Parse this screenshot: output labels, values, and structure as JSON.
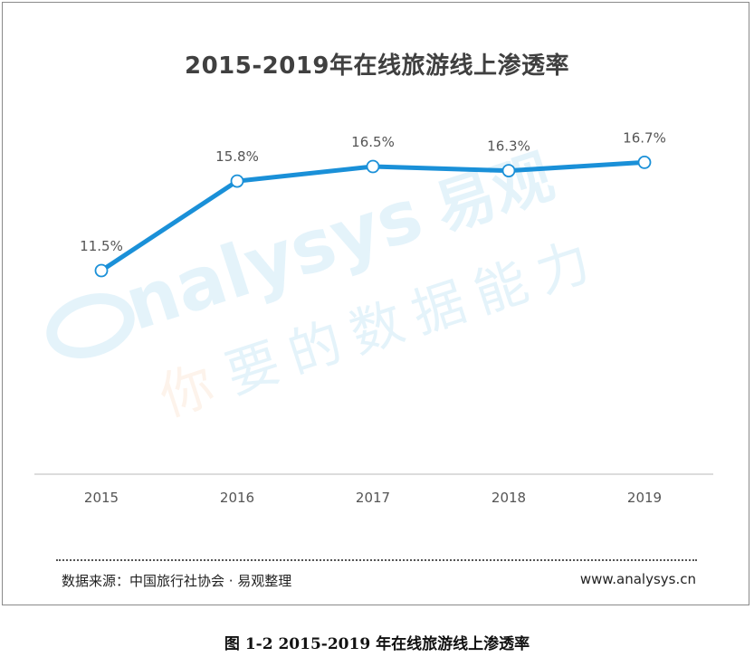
{
  "colors": {
    "line": "#1a90d8",
    "point_fill": "#ffffff",
    "axis": "#d0d0d0",
    "text": "#555555",
    "watermark_blue": "#2aa0dc",
    "watermark_orange": "#f0a060"
  },
  "chart_data": {
    "type": "line",
    "title": "2015-2019年在线旅游线上渗透率",
    "categories": [
      "2015",
      "2016",
      "2017",
      "2018",
      "2019"
    ],
    "series": [
      {
        "values": [
          11.5,
          15.8,
          16.5,
          16.3,
          16.7
        ],
        "labels": [
          "11.5%",
          "15.8%",
          "16.5%",
          "16.3%",
          "16.7%"
        ]
      }
    ],
    "ylim": [
      0,
      20
    ],
    "grid": false,
    "legend": "none"
  },
  "watermark": {
    "brand_en": "nalysys",
    "brand_cn": "易观",
    "slogan_first": "你",
    "slogan_rest": "要的数据能力"
  },
  "footer": {
    "source": "数据来源：中国旅行社协会 · 易观整理",
    "website": "www.analysys.cn"
  },
  "caption": "图 1-2 2015-2019 年在线旅游线上渗透率"
}
